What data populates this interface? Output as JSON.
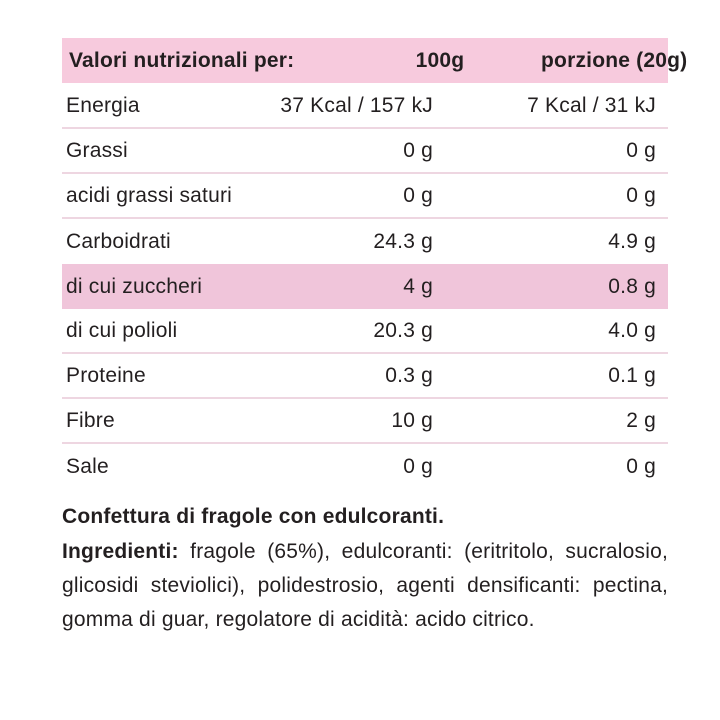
{
  "colors": {
    "header_bg": "#f7cadd",
    "highlight_bg": "#f0c5da",
    "divider": "#eed6e1",
    "text": "#231f20",
    "background": "#ffffff"
  },
  "table": {
    "header": {
      "label": "Valori nutrizionali per:",
      "col1": "100g",
      "col2": "porzione (20g)"
    },
    "rows": [
      {
        "label": "Energia",
        "col1": "37 Kcal / 157 kJ",
        "col2": "7 Kcal / 31 kJ",
        "highlight": false,
        "divider": true
      },
      {
        "label": "Grassi",
        "col1": "0 g",
        "col2": "0 g",
        "highlight": false,
        "divider": true
      },
      {
        "label": "acidi grassi saturi",
        "col1": "0 g",
        "col2": "0 g",
        "highlight": false,
        "divider": true
      },
      {
        "label": "Carboidrati",
        "col1": "24.3 g",
        "col2": "4.9 g",
        "highlight": false,
        "divider": false
      },
      {
        "label": "di cui zuccheri",
        "col1": "4 g",
        "col2": "0.8 g",
        "highlight": true,
        "divider": false
      },
      {
        "label": "di cui polioli",
        "col1": "20.3 g",
        "col2": "4.0 g",
        "highlight": false,
        "divider": true
      },
      {
        "label": "Proteine",
        "col1": "0.3 g",
        "col2": "0.1 g",
        "highlight": false,
        "divider": true
      },
      {
        "label": "Fibre",
        "col1": "10 g",
        "col2": "2 g",
        "highlight": false,
        "divider": true
      },
      {
        "label": "Sale",
        "col1": "0 g",
        "col2": "0 g",
        "highlight": false,
        "divider": false
      }
    ]
  },
  "description": {
    "title": "Confettura di fragole con edulcoranti.",
    "ingredients_label": "Ingredienti:",
    "ingredients_text": "fragole (65%), edulcoranti: (eritritolo, sucralosio, glicosidi steviolici), polidestrosio, agenti densificanti: pectina, gomma di guar, regolatore di acidità: acido citrico."
  }
}
